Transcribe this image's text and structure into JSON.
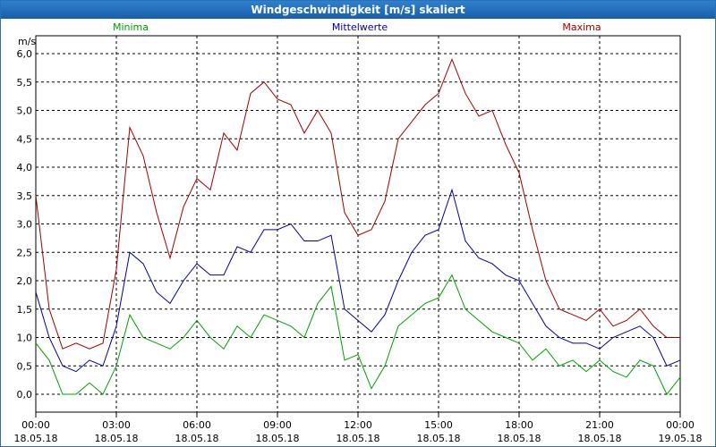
{
  "window": {
    "title": "Windgeschwindigkeit [m/s] skaliert"
  },
  "chart_data": {
    "type": "line",
    "title": "Windgeschwindigkeit [m/s] skaliert",
    "ylabel": "m/s",
    "xlabel": "",
    "ylim": [
      0.0,
      6.0
    ],
    "y_ticks": [
      "0,0",
      "0,5",
      "1,0",
      "1,5",
      "2,0",
      "2,5",
      "3,0",
      "3,5",
      "4,0",
      "4,5",
      "5,0",
      "5,5",
      "6,0"
    ],
    "x_ticks": [
      {
        "time": "00:00",
        "date": "18.05.18"
      },
      {
        "time": "03:00",
        "date": "18.05.18"
      },
      {
        "time": "06:00",
        "date": "18.05.18"
      },
      {
        "time": "09:00",
        "date": "18.05.18"
      },
      {
        "time": "12:00",
        "date": "18.05.18"
      },
      {
        "time": "15:00",
        "date": "18.05.18"
      },
      {
        "time": "18:00",
        "date": "18.05.18"
      },
      {
        "time": "21:00",
        "date": "18.05.18"
      },
      {
        "time": "00:00",
        "date": "19.05.18"
      }
    ],
    "x_hours": [
      0,
      0.5,
      1,
      1.5,
      2,
      2.5,
      3,
      3.5,
      4,
      4.5,
      5,
      5.5,
      6,
      6.5,
      7,
      7.5,
      8,
      8.5,
      9,
      9.5,
      10,
      10.5,
      11,
      11.5,
      12,
      12.5,
      13,
      13.5,
      14,
      14.5,
      15,
      15.5,
      16,
      16.5,
      17,
      17.5,
      18,
      18.5,
      19,
      19.5,
      20,
      20.5,
      21,
      21.5,
      22,
      22.5,
      23,
      23.5,
      24
    ],
    "grid": true,
    "series": [
      {
        "name": "Minima",
        "color": "#00a000",
        "values": [
          0.9,
          0.6,
          0.0,
          0.0,
          0.2,
          0.0,
          0.5,
          1.4,
          1.0,
          0.9,
          0.8,
          1.0,
          1.3,
          1.0,
          0.8,
          1.2,
          1.0,
          1.4,
          1.3,
          1.2,
          1.0,
          1.6,
          1.9,
          0.6,
          0.7,
          0.1,
          0.5,
          1.2,
          1.4,
          1.6,
          1.7,
          2.1,
          1.5,
          1.3,
          1.1,
          1.0,
          0.9,
          0.6,
          0.8,
          0.5,
          0.6,
          0.4,
          0.6,
          0.4,
          0.3,
          0.6,
          0.5,
          0.0,
          0.3
        ]
      },
      {
        "name": "Mittelwerte",
        "color": "#0000a0",
        "values": [
          1.8,
          1.0,
          0.5,
          0.4,
          0.6,
          0.5,
          1.2,
          2.5,
          2.3,
          1.8,
          1.6,
          2.0,
          2.3,
          2.1,
          2.1,
          2.6,
          2.5,
          2.9,
          2.9,
          3.0,
          2.7,
          2.7,
          2.8,
          1.5,
          1.3,
          1.1,
          1.4,
          2.0,
          2.5,
          2.8,
          2.9,
          3.6,
          2.7,
          2.4,
          2.3,
          2.1,
          2.0,
          1.6,
          1.2,
          1.0,
          0.9,
          0.9,
          0.8,
          1.0,
          1.1,
          1.2,
          1.0,
          0.5,
          0.6
        ]
      },
      {
        "name": "Maxima",
        "color": "#a00000",
        "values": [
          3.5,
          1.5,
          0.8,
          0.9,
          0.8,
          0.9,
          2.2,
          4.7,
          4.2,
          3.2,
          2.4,
          3.3,
          3.8,
          3.6,
          4.6,
          4.3,
          5.3,
          5.5,
          5.2,
          5.1,
          4.6,
          5.0,
          4.6,
          3.2,
          2.8,
          2.9,
          3.4,
          4.5,
          4.8,
          5.1,
          5.3,
          5.9,
          5.3,
          4.9,
          5.0,
          4.4,
          3.9,
          2.9,
          2.0,
          1.5,
          1.4,
          1.3,
          1.5,
          1.2,
          1.3,
          1.5,
          1.2,
          1.0,
          1.0
        ]
      }
    ]
  }
}
